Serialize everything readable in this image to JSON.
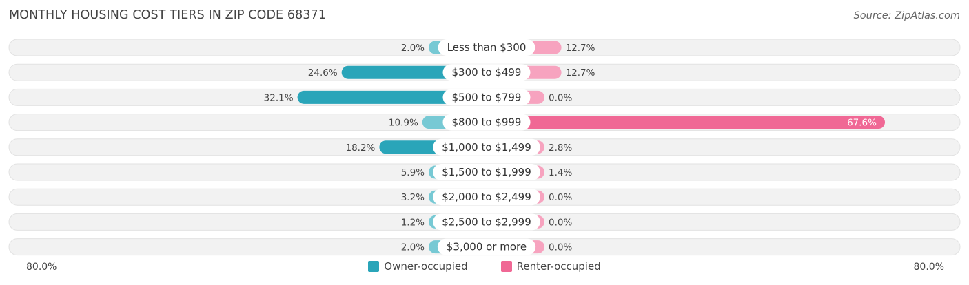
{
  "title": "MONTHLY HOUSING COST TIERS IN ZIP CODE 68371",
  "source": "Source: ZipAtlas.com",
  "axis": {
    "left_label": "80.0%",
    "right_label": "80.0%"
  },
  "legend": {
    "owner_label": "Owner-occupied",
    "renter_label": "Renter-occupied"
  },
  "colors": {
    "owner": "#5bbfcc",
    "owner_strong": "#2aa5b9",
    "renter": "#f7a3bf",
    "renter_strong": "#f06895",
    "track": "#efefef"
  },
  "chart_data": {
    "type": "bar",
    "orientation": "diverging-horizontal",
    "axis_max": 80.0,
    "categories": [
      "Less than $300",
      "$300 to $499",
      "$500 to $799",
      "$800 to $999",
      "$1,000 to $1,499",
      "$1,500 to $1,999",
      "$2,000 to $2,499",
      "$2,500 to $2,999",
      "$3,000 or more"
    ],
    "series": [
      {
        "name": "Owner-occupied",
        "values": [
          2.0,
          24.6,
          32.1,
          10.9,
          18.2,
          5.9,
          3.2,
          1.2,
          2.0
        ],
        "labels": [
          "2.0%",
          "24.6%",
          "32.1%",
          "10.9%",
          "18.2%",
          "5.9%",
          "3.2%",
          "1.2%",
          "2.0%"
        ]
      },
      {
        "name": "Renter-occupied",
        "values": [
          12.7,
          12.7,
          0.0,
          67.6,
          2.8,
          1.4,
          0.0,
          0.0,
          0.0
        ],
        "labels": [
          "12.7%",
          "12.7%",
          "0.0%",
          "67.6%",
          "2.8%",
          "1.4%",
          "0.0%",
          "0.0%",
          "0.0%"
        ]
      }
    ]
  }
}
